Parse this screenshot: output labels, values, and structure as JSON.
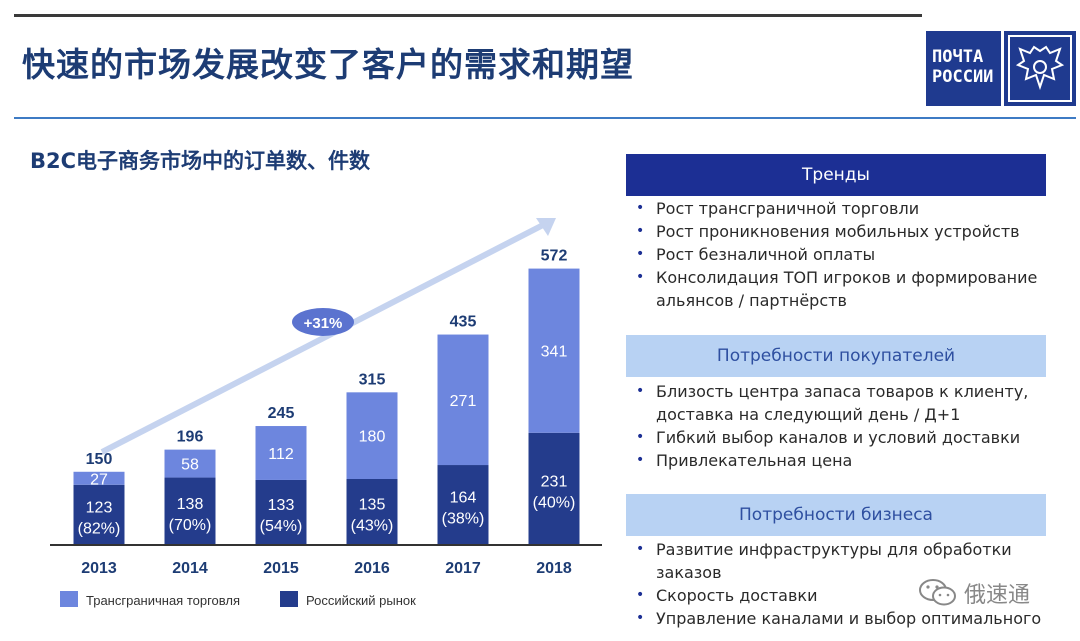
{
  "title": "快速的市场发展改变了客户的需求和期望",
  "logo": {
    "line1": "ПОЧТА",
    "line2": "РОССИИ",
    "emblem_icon": "double-headed-eagle-icon"
  },
  "chart_subtitle": "B2C电子商务市场中的订单数、件数",
  "chart_data": {
    "type": "bar",
    "stacked": true,
    "categories": [
      "2013",
      "2014",
      "2015",
      "2016",
      "2017",
      "2018"
    ],
    "series": [
      {
        "name": "Российский рынок",
        "color": "#243c8c",
        "values": [
          123,
          138,
          133,
          135,
          164,
          231
        ],
        "share_labels": [
          "(82%)",
          "(70%)",
          "(54%)",
          "(43%)",
          "(38%)",
          "(40%)"
        ]
      },
      {
        "name": "Трансграничная торговля",
        "color": "#6d86de",
        "values": [
          27,
          58,
          112,
          180,
          271,
          341
        ]
      }
    ],
    "totals": [
      150,
      196,
      245,
      315,
      435,
      572
    ],
    "growth_label": "+31%",
    "legend_position": "bottom-left",
    "grid": false
  },
  "panels": [
    {
      "header": "Тренды",
      "style": "dark",
      "items": [
        "Рост трансграничной торговли",
        "Рост проникновения мобильных устройств",
        "Рост безналичной оплаты",
        "Консолидация ТОП игроков и формирование альянсов / партнёрств"
      ]
    },
    {
      "header": "Потребности покупателей",
      "style": "light",
      "items": [
        "Близость центра запаса товаров к клиенту, доставка на следующий день / Д+1",
        "Гибкий выбор каналов и условий доставки",
        "Привлекательная цена"
      ]
    },
    {
      "header": "Потребности бизнеса",
      "style": "light",
      "items": [
        "Развитие инфраструктуры для обработки заказов",
        "Скорость доставки",
        "Управление каналами и выбор оптимального"
      ]
    }
  ],
  "watermark": {
    "text": "俄速通",
    "icon": "wechat-icon"
  }
}
